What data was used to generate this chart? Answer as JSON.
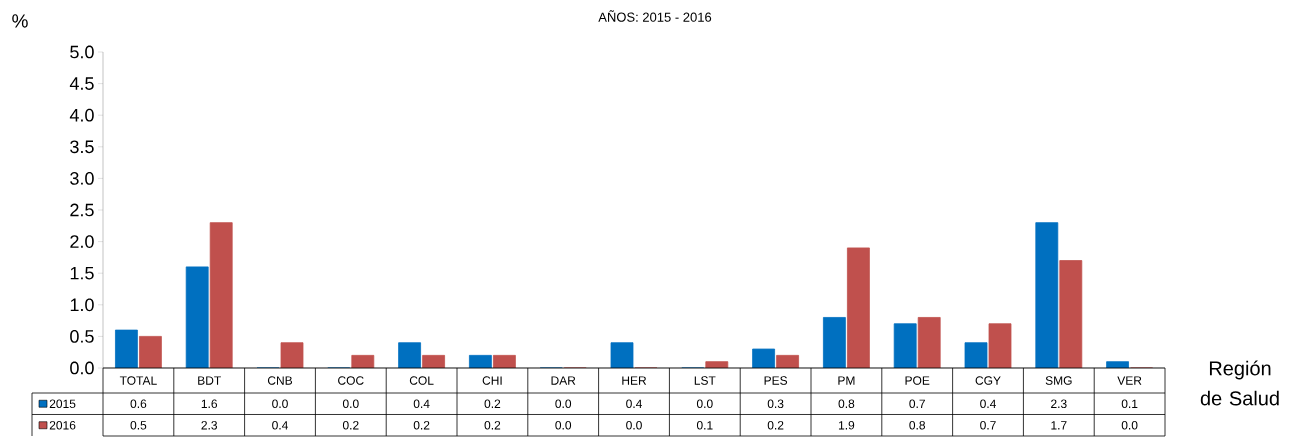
{
  "chart_data": {
    "type": "bar",
    "title": "AÑOS: 2015 - 2016",
    "ylabel": "%",
    "xlabel": "Región de Salud",
    "categories": [
      "TOTAL",
      "BDT",
      "CNB",
      "COC",
      "COL",
      "CHI",
      "DAR",
      "HER",
      "LST",
      "PES",
      "PM",
      "POE",
      "CGY",
      "SMG",
      "VER"
    ],
    "series": [
      {
        "name": "2015",
        "color": "#0070c0",
        "values": [
          0.6,
          1.6,
          0.0,
          0.0,
          0.4,
          0.2,
          0.0,
          0.4,
          0.0,
          0.3,
          0.8,
          0.7,
          0.4,
          2.3,
          0.1
        ],
        "value_labels": [
          "0.6",
          "1.6",
          "0.0",
          "0.0",
          "0.4",
          "0.2",
          "0.0",
          "0.4",
          "0.0",
          "0.3",
          "0.8",
          "0.7",
          "0.4",
          "2.3",
          "0.1"
        ]
      },
      {
        "name": "2016",
        "color": "#c0504d",
        "values": [
          0.5,
          2.3,
          0.4,
          0.2,
          0.2,
          0.2,
          0.0,
          0.0,
          0.1,
          0.2,
          1.9,
          0.8,
          0.7,
          1.7,
          0.0
        ],
        "value_labels": [
          "0.5",
          "2.3",
          "0.4",
          "0.2",
          "0.2",
          "0.2",
          "0.0",
          "0.0",
          "0.1",
          "0.2",
          "1.9",
          "0.8",
          "0.7",
          "1.7",
          "0.0"
        ]
      }
    ],
    "ylim": [
      0,
      5
    ],
    "yticks": [
      {
        "value": 0,
        "label": "0.0"
      },
      {
        "value": 0.5,
        "label": "0.5"
      },
      {
        "value": 1,
        "label": "1.0"
      },
      {
        "value": 1.5,
        "label": "1.5"
      },
      {
        "value": 2,
        "label": "2.0"
      },
      {
        "value": 2.5,
        "label": "2.5"
      },
      {
        "value": 3,
        "label": "3.0"
      },
      {
        "value": 3.5,
        "label": "3.5"
      },
      {
        "value": 4,
        "label": "4.0"
      },
      {
        "value": 4.5,
        "label": "4.5"
      },
      {
        "value": 5,
        "label": "5.0"
      }
    ],
    "legend": "bottom left",
    "grid": false
  }
}
